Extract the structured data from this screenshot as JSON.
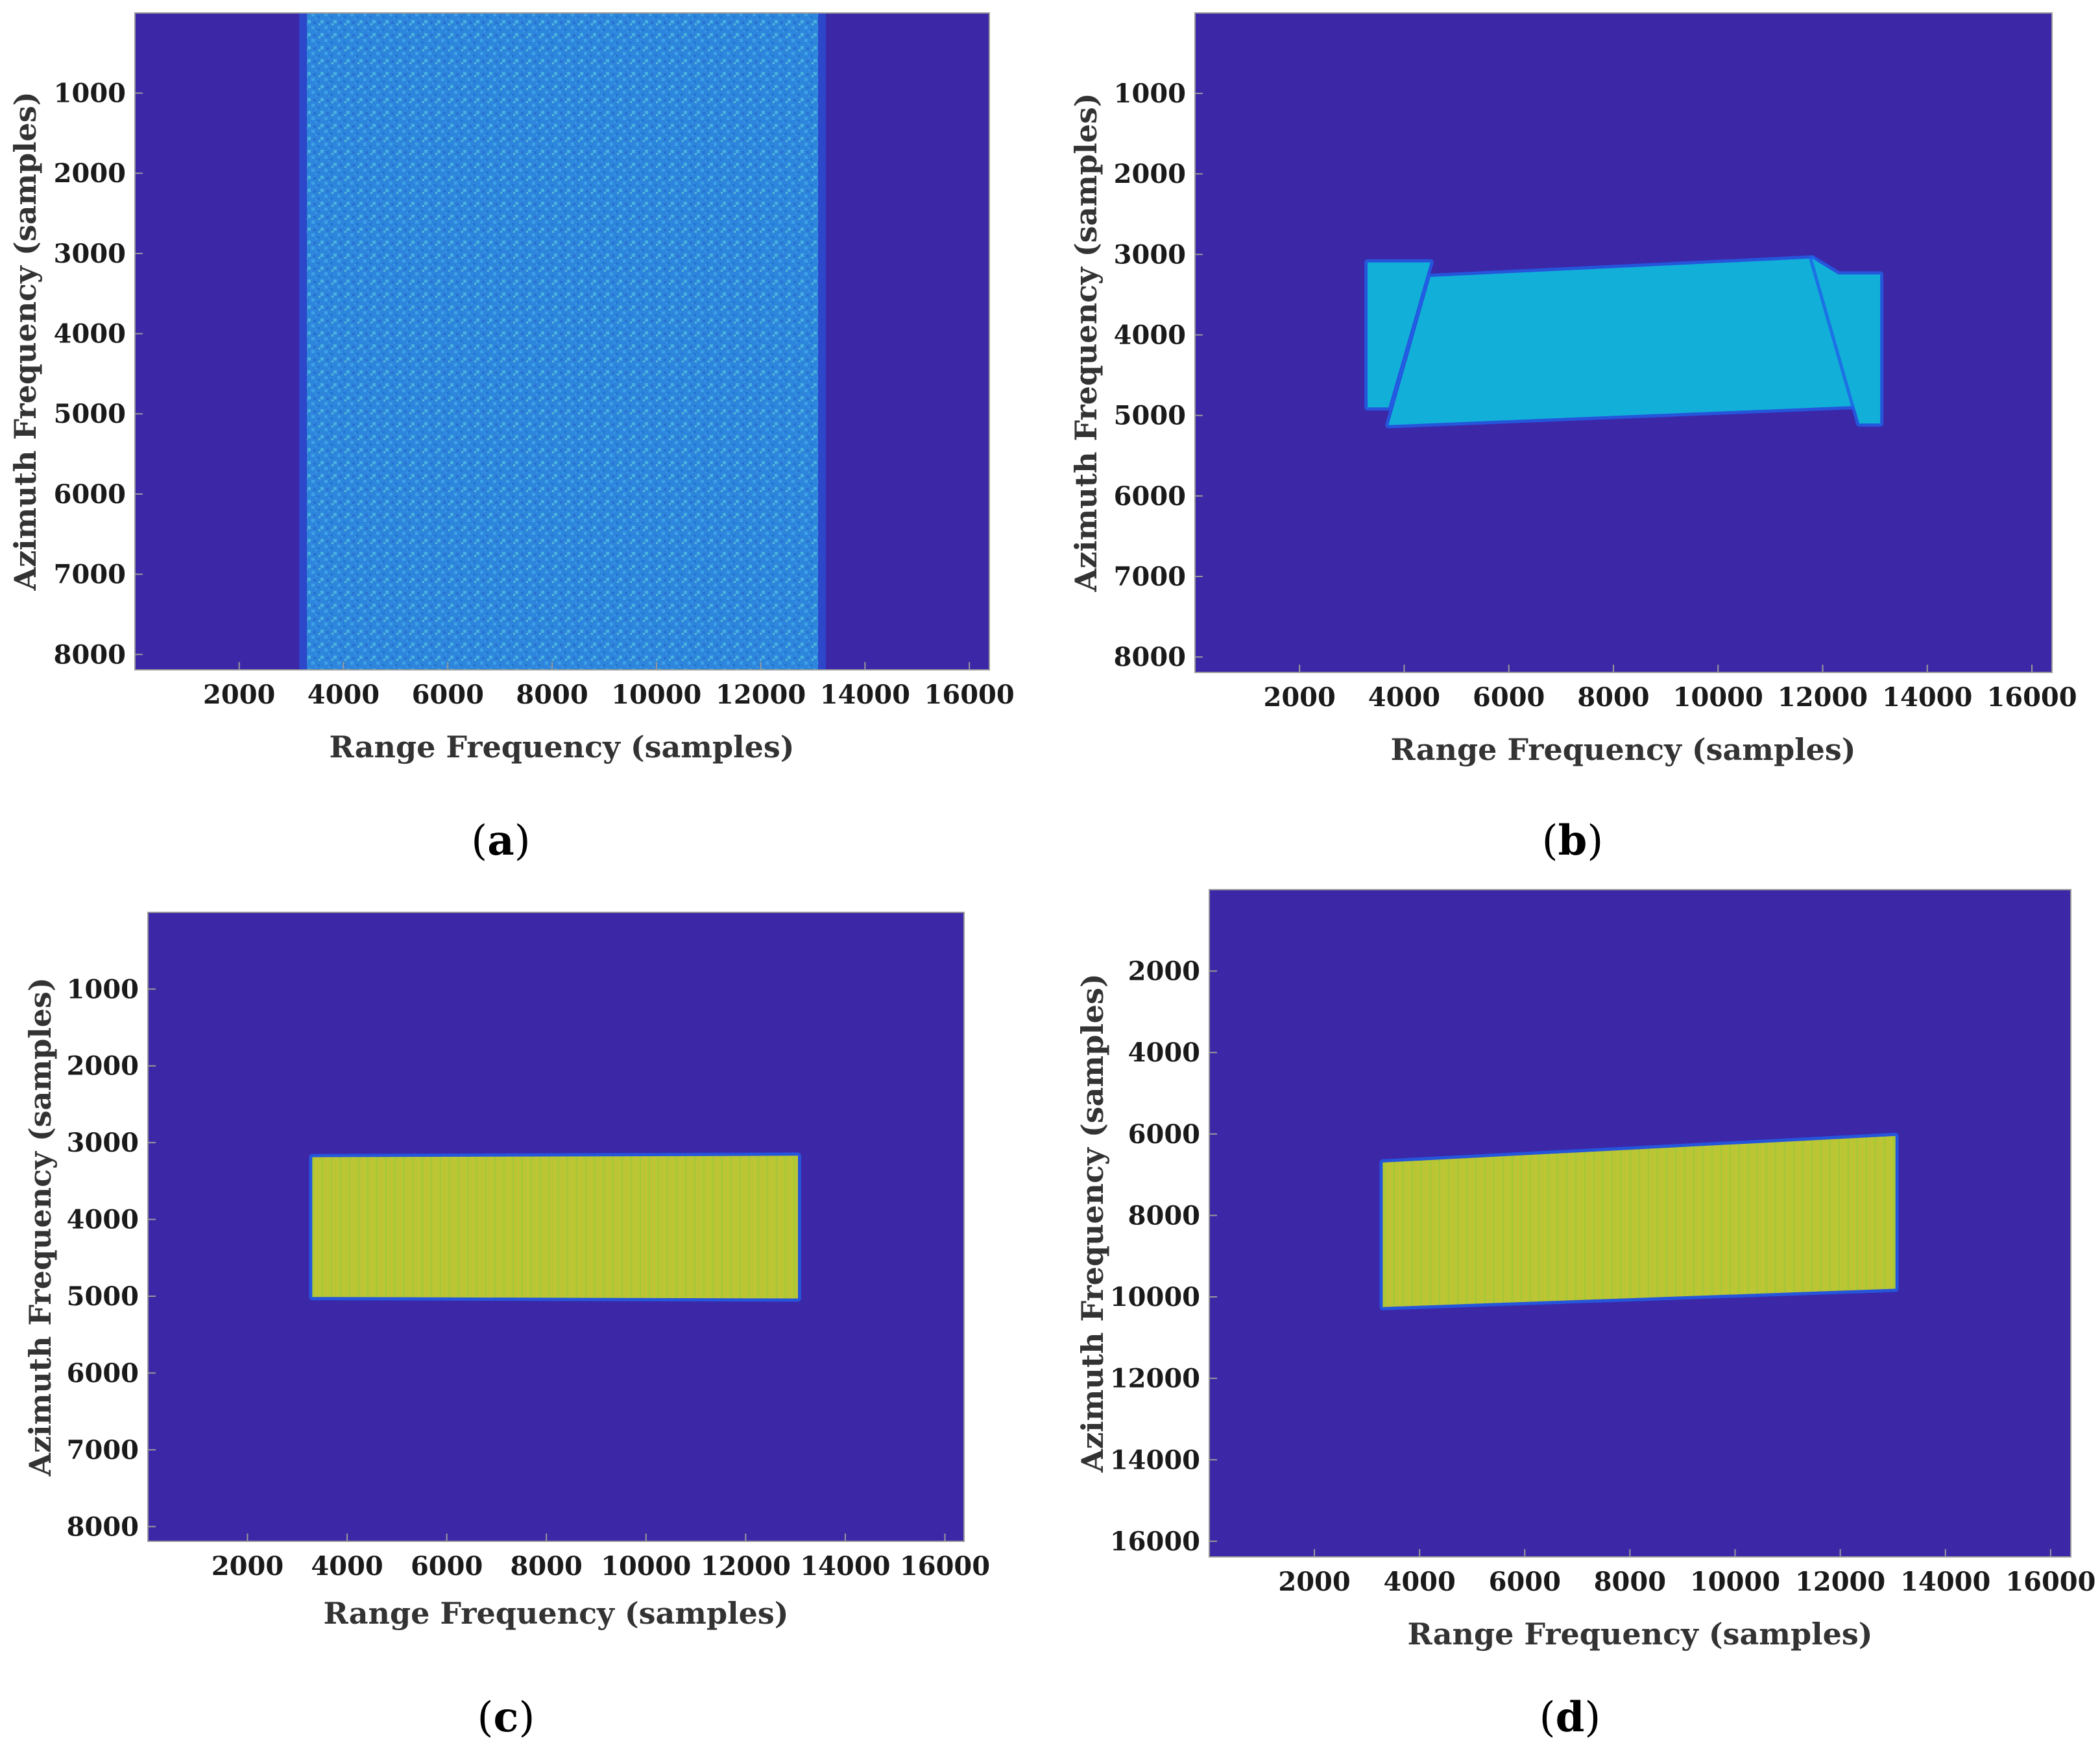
{
  "colors": {
    "background": "#3c27a6",
    "noise": "#2f8fe0",
    "cyan_fill": "#12b0d8",
    "yellow_fill": "#b4c631",
    "edge": "#1f62e8"
  },
  "chart_data": [
    {
      "id": "a",
      "type": "heatmap",
      "panel_label": "a",
      "xlabel": "Range Frequency (samples)",
      "ylabel": "Azimuth Frequency (samples)",
      "xlim": [
        1,
        16384
      ],
      "ylim": [
        1,
        8192
      ],
      "y_reversed": true,
      "x_ticks": [
        2000,
        4000,
        6000,
        8000,
        10000,
        12000,
        14000,
        16000
      ],
      "y_ticks": [
        1000,
        2000,
        3000,
        4000,
        5000,
        6000,
        7000,
        8000
      ],
      "regions": [
        {
          "kind": "noise_band",
          "x_range": [
            3300,
            13100
          ],
          "y_range": [
            1,
            8192
          ]
        }
      ]
    },
    {
      "id": "b",
      "type": "heatmap",
      "panel_label": "b",
      "xlabel": "Range Frequency (samples)",
      "ylabel": "Azimuth Frequency (samples)",
      "xlim": [
        1,
        16384
      ],
      "ylim": [
        1,
        8192
      ],
      "y_reversed": true,
      "x_ticks": [
        2000,
        4000,
        6000,
        8000,
        10000,
        12000,
        14000,
        16000
      ],
      "y_ticks": [
        1000,
        2000,
        3000,
        4000,
        5000,
        6000,
        7000,
        8000
      ],
      "regions": [
        {
          "kind": "cyan_polygon",
          "points": [
            [
              3300,
              3100
            ],
            [
              4500,
              3100
            ],
            [
              3700,
              4900
            ],
            [
              3300,
              4900
            ]
          ]
        },
        {
          "kind": "cyan_polygon",
          "points": [
            [
              4500,
              3280
            ],
            [
              11800,
              3050
            ],
            [
              12700,
              4880
            ],
            [
              3700,
              5120
            ]
          ]
        },
        {
          "kind": "cyan_polygon",
          "points": [
            [
              11800,
              3050
            ],
            [
              12300,
              3250
            ],
            [
              13100,
              3250
            ],
            [
              13100,
              5100
            ],
            [
              12700,
              5100
            ]
          ]
        }
      ]
    },
    {
      "id": "c",
      "type": "heatmap",
      "panel_label": "c",
      "xlabel": "Range Frequency (samples)",
      "ylabel": "Azimuth Frequency (samples)",
      "xlim": [
        1,
        16384
      ],
      "ylim": [
        1,
        8192
      ],
      "y_reversed": true,
      "x_ticks": [
        2000,
        4000,
        6000,
        8000,
        10000,
        12000,
        14000,
        16000
      ],
      "y_ticks": [
        1000,
        2000,
        3000,
        4000,
        5000,
        6000,
        7000,
        8000
      ],
      "regions": [
        {
          "kind": "yellow_polygon",
          "points": [
            [
              3300,
              3190
            ],
            [
              13050,
              3170
            ],
            [
              13050,
              5030
            ],
            [
              3300,
              5010
            ]
          ]
        }
      ]
    },
    {
      "id": "d",
      "type": "heatmap",
      "panel_label": "d",
      "xlabel": "Range Frequency (samples)",
      "ylabel": "Azimuth Frequency (samples)",
      "xlim": [
        1,
        16384
      ],
      "ylim": [
        1,
        16384
      ],
      "y_reversed": true,
      "x_ticks": [
        2000,
        4000,
        6000,
        8000,
        10000,
        12000,
        14000,
        16000
      ],
      "y_ticks": [
        2000,
        4000,
        6000,
        8000,
        10000,
        12000,
        14000,
        16000
      ],
      "regions": [
        {
          "kind": "yellow_polygon",
          "points": [
            [
              3300,
              6700
            ],
            [
              13050,
              6050
            ],
            [
              13050,
              9800
            ],
            [
              3300,
              10250
            ]
          ]
        }
      ]
    }
  ]
}
